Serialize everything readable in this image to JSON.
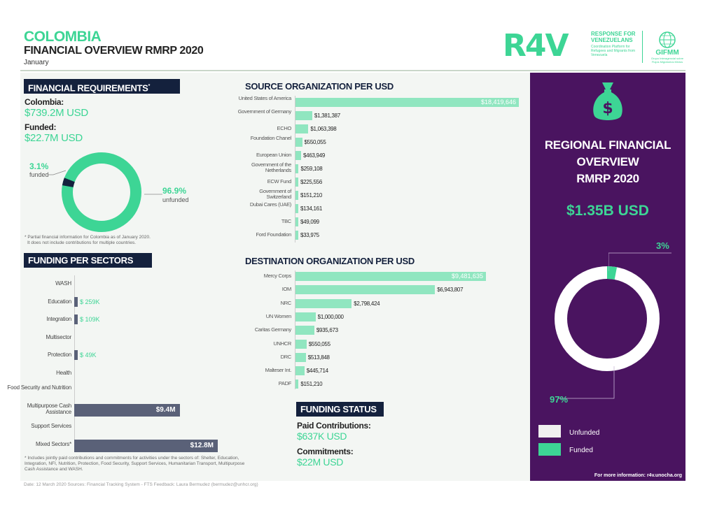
{
  "header": {
    "title": "COLOMBIA",
    "subtitle": "FINANCIAL OVERVIEW RMRP 2020",
    "month": "January",
    "logo": {
      "r4v": "R4V",
      "line1": "RESPONSE FOR",
      "line2": "VENEZUELANS",
      "tagline": "Coordination Platform for Refugees and Migrants from Venezuela",
      "gifmm": "GIFMM",
      "gifmm_sub": "Grupo Interagencial sobre Flujos Migratorios Mixtos"
    }
  },
  "financial_requirements": {
    "header": "FINANCIAL REQUIREMENTS",
    "asterisk": "*",
    "colombia_label": "Colombia:",
    "colombia_value": "$739.2M USD",
    "funded_label": "Funded:",
    "funded_value": "$22.7M USD",
    "funded_pct": "3.1%",
    "funded_text": "funded",
    "unfunded_pct": "96.9%",
    "unfunded_text": "unfunded",
    "funded_fraction": 0.031,
    "note_line1": "* Partial financial information for Colombia as of January 2020.",
    "note_line2": "It does not include contributions for multiple countries."
  },
  "sectors": {
    "header": "FUNDING PER SECTORS",
    "items": [
      {
        "label": "WASH",
        "value_label": "",
        "value": 0
      },
      {
        "label": "Education",
        "value_label": "$ 259K",
        "value": 0.259
      },
      {
        "label": "Integration",
        "value_label": "$ 109K",
        "value": 0.109
      },
      {
        "label": "Multisector",
        "value_label": "",
        "value": 0
      },
      {
        "label": "Protection",
        "value_label": "$ 49K",
        "value": 0.049
      },
      {
        "label": "Health",
        "value_label": "",
        "value": 0
      },
      {
        "label": "Food Security and Nutrition",
        "value_label": "",
        "value": 0
      },
      {
        "label": "Multipurpose Cash Assistance",
        "value_label": "$9.4M",
        "value": 9.4
      },
      {
        "label": "Support Services",
        "value_label": "",
        "value": 0
      },
      {
        "label": "Mixed Sectors*",
        "value_label": "$12.8M",
        "value": 12.8
      }
    ],
    "note": "* Includes jointly paid contributions and commitments for activities under the sectors of: Shelter, Education, Integration, NFI, Nutrition, Protection, Food Security, Support Services, Humanitarian Transport, Multipurpose Cash Assistance and WASH."
  },
  "source_orgs": {
    "header": "SOURCE ORGANIZATION PER USD",
    "items": [
      {
        "label": "United States of America",
        "value_label": "$18,419,646",
        "value": 18419646
      },
      {
        "label": "Government of Germany",
        "value_label": "$1,381,387",
        "value": 1381387
      },
      {
        "label": "ECHO",
        "value_label": "$1,063,398",
        "value": 1063398
      },
      {
        "label": "Foundation Chanel",
        "value_label": "$550,055",
        "value": 550055
      },
      {
        "label": "European Union",
        "value_label": "$463,949",
        "value": 463949
      },
      {
        "label": "Government of the Netherlands",
        "value_label": "$259,108",
        "value": 259108
      },
      {
        "label": "ECW Fund",
        "value_label": "$225,556",
        "value": 225556
      },
      {
        "label": "Government of Switzerland",
        "value_label": "$151,210",
        "value": 151210
      },
      {
        "label": "Dubai Cares (UAE)",
        "value_label": "$134,161",
        "value": 134161
      },
      {
        "label": "TBC",
        "value_label": "$49,099",
        "value": 49099
      },
      {
        "label": "Ford Foundation",
        "value_label": "$33,975",
        "value": 33975
      }
    ]
  },
  "destination_orgs": {
    "header": "DESTINATION ORGANIZATION PER USD",
    "items": [
      {
        "label": "Mercy Corps",
        "value_label": "$9,481,635",
        "value": 9481635
      },
      {
        "label": "IOM",
        "value_label": "$6,943,807",
        "value": 6943807
      },
      {
        "label": "NRC",
        "value_label": "$2,798,424",
        "value": 2798424
      },
      {
        "label": "UN Women",
        "value_label": "$1,000,000",
        "value": 1000000
      },
      {
        "label": "Caritas Germany",
        "value_label": "$935,673",
        "value": 935673
      },
      {
        "label": "UNHCR",
        "value_label": "$550,055",
        "value": 550055
      },
      {
        "label": "DRC",
        "value_label": "$513,848",
        "value": 513848
      },
      {
        "label": "Malteser Int.",
        "value_label": "$445,714",
        "value": 445714
      },
      {
        "label": "PADF",
        "value_label": "$151,210",
        "value": 151210
      }
    ]
  },
  "funding_status": {
    "header": "FUNDING STATUS",
    "paid_label": "Paid Contributions:",
    "paid_value": "$637K USD",
    "commit_label": "Commitments:",
    "commit_value": "$22M USD"
  },
  "regional": {
    "title_line1": "REGIONAL FINANCIAL",
    "title_line2": "OVERVIEW",
    "title_line3": "RMRP 2020",
    "amount": "$1.35B USD",
    "funded_pct": "3%",
    "unfunded_pct": "97%",
    "funded_fraction": 0.03,
    "legend_unfunded": "Unfunded",
    "legend_funded": "Funded",
    "footer": "For more information: r4v.unocha.org",
    "icon": "money-bag-icon"
  },
  "footer": "Date: 12 March 2020   Sources: Financial Tracking System - FTS   Feedback: Laura Bermudez (bermudez@unhcr.org)",
  "colors": {
    "green": "#3dd595",
    "light_green": "#90e6c0",
    "navy": "#14213d",
    "purple": "#4a1460",
    "slate": "#5a6178"
  }
}
